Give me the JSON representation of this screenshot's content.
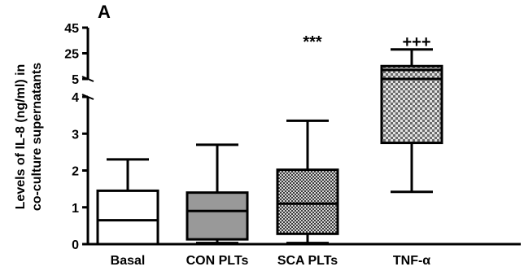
{
  "chart_data": {
    "type": "box",
    "panel_label": "A",
    "ylabel_line1": "Levels of IL-8 (ng/ml) in",
    "ylabel_line2": "co-culture supernatants",
    "xlabel": "",
    "axis_break": true,
    "lower_ylim": [
      0,
      4
    ],
    "lower_ticks": [
      "0",
      "1",
      "2",
      "3",
      "4"
    ],
    "upper_ylim": [
      5,
      45
    ],
    "upper_ticks": [
      "5",
      "25",
      "45"
    ],
    "categories": [
      "Basal",
      "CON PLTs",
      "SCA PLTs",
      "TNF-α"
    ],
    "boxes": [
      {
        "name": "Basal",
        "min": 0.0,
        "q1": 0.0,
        "median": 0.65,
        "q3": 1.45,
        "max": 2.3,
        "fill": "#ffffff",
        "pattern": "none",
        "annotation": ""
      },
      {
        "name": "CON PLTs",
        "min": 0.03,
        "q1": 0.13,
        "median": 0.9,
        "q3": 1.4,
        "max": 2.7,
        "fill": "#999999",
        "pattern": "none",
        "annotation": ""
      },
      {
        "name": "SCA PLTs",
        "min": 0.03,
        "q1": 0.28,
        "median": 1.1,
        "q3": 2.02,
        "max": 3.35,
        "fill": "#8a8a8a",
        "pattern": "fine-check",
        "annotation": "***"
      },
      {
        "name": "TNF-α",
        "min": 1.42,
        "q1": 2.75,
        "median": 12.0,
        "q3": 15.0,
        "max": 28.0,
        "fill": "#bdbdbd",
        "pattern": "checker",
        "annotation": "+++"
      }
    ],
    "grid": false,
    "legend": "none"
  }
}
